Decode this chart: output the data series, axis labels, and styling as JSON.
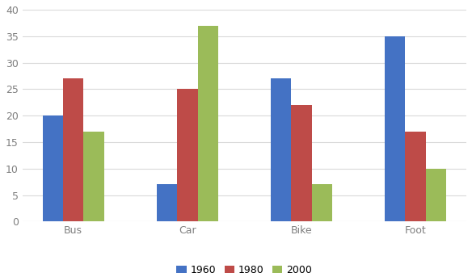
{
  "categories": [
    "Bus",
    "Car",
    "Bike",
    "Foot"
  ],
  "series": {
    "1960": [
      20,
      7,
      27,
      35
    ],
    "1980": [
      27,
      25,
      22,
      17
    ],
    "2000": [
      17,
      37,
      7,
      10
    ]
  },
  "colors": {
    "1960": "#4472C4",
    "1980": "#BE4B48",
    "2000": "#9BBB59"
  },
  "ylim": [
    0,
    40
  ],
  "yticks": [
    0,
    5,
    10,
    15,
    20,
    25,
    30,
    35,
    40
  ],
  "legend_labels": [
    "1960",
    "1980",
    "2000"
  ],
  "bar_width": 0.18,
  "grid_color": "#D9D9D9",
  "bg_color": "#FFFFFF",
  "tick_color": "#7F7F7F",
  "tick_fontsize": 9,
  "legend_fontsize": 9
}
